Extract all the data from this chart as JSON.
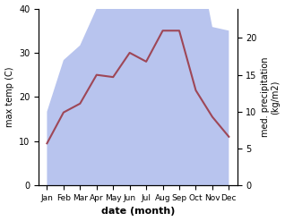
{
  "months": [
    "Jan",
    "Feb",
    "Mar",
    "Apr",
    "May",
    "Jun",
    "Jul",
    "Aug",
    "Sep",
    "Oct",
    "Nov",
    "Dec"
  ],
  "temp_max": [
    9.5,
    16.5,
    18.5,
    25.0,
    24.5,
    30.0,
    28.0,
    35.0,
    35.0,
    21.5,
    15.5,
    11.0
  ],
  "precip": [
    10.0,
    17.0,
    19.0,
    24.0,
    27.0,
    37.5,
    35.0,
    39.0,
    33.5,
    33.0,
    21.5,
    21.0
  ],
  "temp_color": "#9e4757",
  "precip_fill_color": "#b8c4ee",
  "ylabel_left": "max temp (C)",
  "ylabel_right": "med. precipitation\n(kg/m2)",
  "xlabel": "date (month)",
  "ylim_left": [
    0,
    40
  ],
  "ylim_right": [
    0,
    24
  ],
  "yticks_left": [
    0,
    10,
    20,
    30,
    40
  ],
  "yticks_right": [
    0,
    5,
    10,
    15,
    20
  ],
  "precip_scale_factor": 1.667,
  "bg_color": "#ffffff"
}
